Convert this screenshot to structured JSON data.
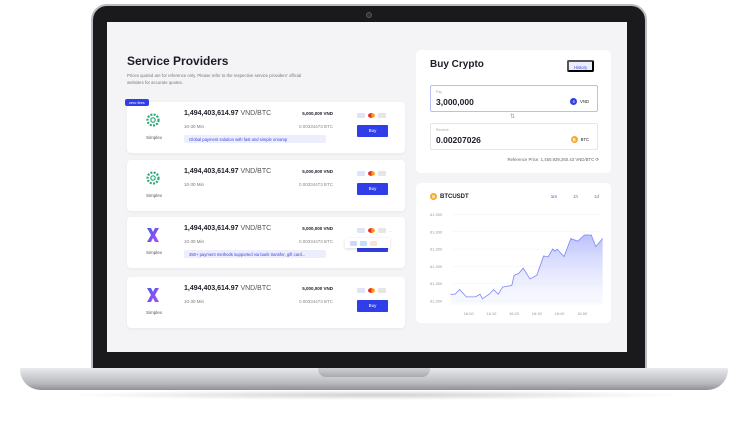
{
  "providers": {
    "title": "Service Providers",
    "note_line1": "Prices quoted are for reference only. Please refer to the respective service providers' official",
    "note_line2": "websites for accurate quotes.",
    "items": [
      {
        "badge": "zero fees",
        "name": "Simplex",
        "logo": "simplex-gear",
        "price": "1,494,403,614.97",
        "unit": "VND/BTC",
        "time": "10-30 Min",
        "fiat": "5,000,000 VND",
        "crypto": "0.00334473 BTC",
        "desc": "Global payment solution with fast and simple onramp",
        "buy": "Buy"
      },
      {
        "name": "Simplex",
        "logo": "simplex-gear",
        "price": "1,494,403,614.97",
        "unit": "VND/BTC",
        "time": "10-30 Min",
        "fiat": "5,000,000 VND",
        "crypto": "0.00334473 BTC",
        "buy": "Buy"
      },
      {
        "name": "Simplex",
        "logo": "x-logo",
        "price": "1,494,403,614.97",
        "unit": "VND/BTC",
        "time": "10-30 Min",
        "fiat": "5,000,000 VND",
        "crypto": "0.00334473 BTC",
        "desc": "350+ payment methods supported via bank transfer, gift card...",
        "buy": "Buy",
        "more": "..."
      },
      {
        "name": "Simplex",
        "logo": "x-logo",
        "price": "1,494,403,614.97",
        "unit": "VND/BTC",
        "time": "10-30 Min",
        "fiat": "5,000,000 VND",
        "crypto": "0.00334473 BTC",
        "buy": "Buy"
      }
    ]
  },
  "buy": {
    "title": "Buy Crypto",
    "history": "History",
    "pay_label": "Pay",
    "pay_value": "3,000,000",
    "pay_currency": "VND",
    "receive_label": "Receive",
    "receive_value": "0.00207026",
    "receive_currency": "BTC",
    "reference": "Reference Price: 1,450,939,260.43 VND/BTC"
  },
  "colors": {
    "accent": "#2f3ee8",
    "btc": "#f7a928",
    "line": "#7d87f5"
  },
  "chart_data": {
    "type": "area",
    "title": "BTCUSDT",
    "intervals": [
      "1m",
      "1h",
      "1d"
    ],
    "selected_interval": "1m",
    "y_tick_labels": [
      "61,300",
      "61,300",
      "61,300",
      "61,300",
      "61,300",
      "61,300"
    ],
    "x_tick_labels": [
      "16:00",
      "16:10",
      "16:20",
      "16:30",
      "16:40",
      "16:50"
    ],
    "x": [
      "15:52",
      "15:54",
      "15:56",
      "15:59",
      "16:03",
      "16:05",
      "16:06",
      "16:09",
      "16:11",
      "16:13",
      "16:15",
      "16:19",
      "16:20",
      "16:22",
      "16:24",
      "16:27",
      "16:30",
      "16:33",
      "16:35",
      "16:37",
      "16:38",
      "16:39",
      "16:42",
      "16:45",
      "16:48",
      "16:51",
      "16:54",
      "16:56",
      "16:59"
    ],
    "y": [
      0.77,
      0.77,
      1.1,
      0.58,
      0.58,
      0.77,
      0.44,
      0.77,
      1.1,
      0.77,
      1.29,
      1.4,
      2.12,
      2.25,
      2.63,
      1.87,
      2.12,
      3.5,
      3.44,
      4.0,
      3.85,
      3.98,
      3.46,
      4.75,
      4.56,
      5.0,
      5.0,
      4.17,
      4.75
    ],
    "ylim": [
      0,
      5
    ],
    "grid": true
  }
}
